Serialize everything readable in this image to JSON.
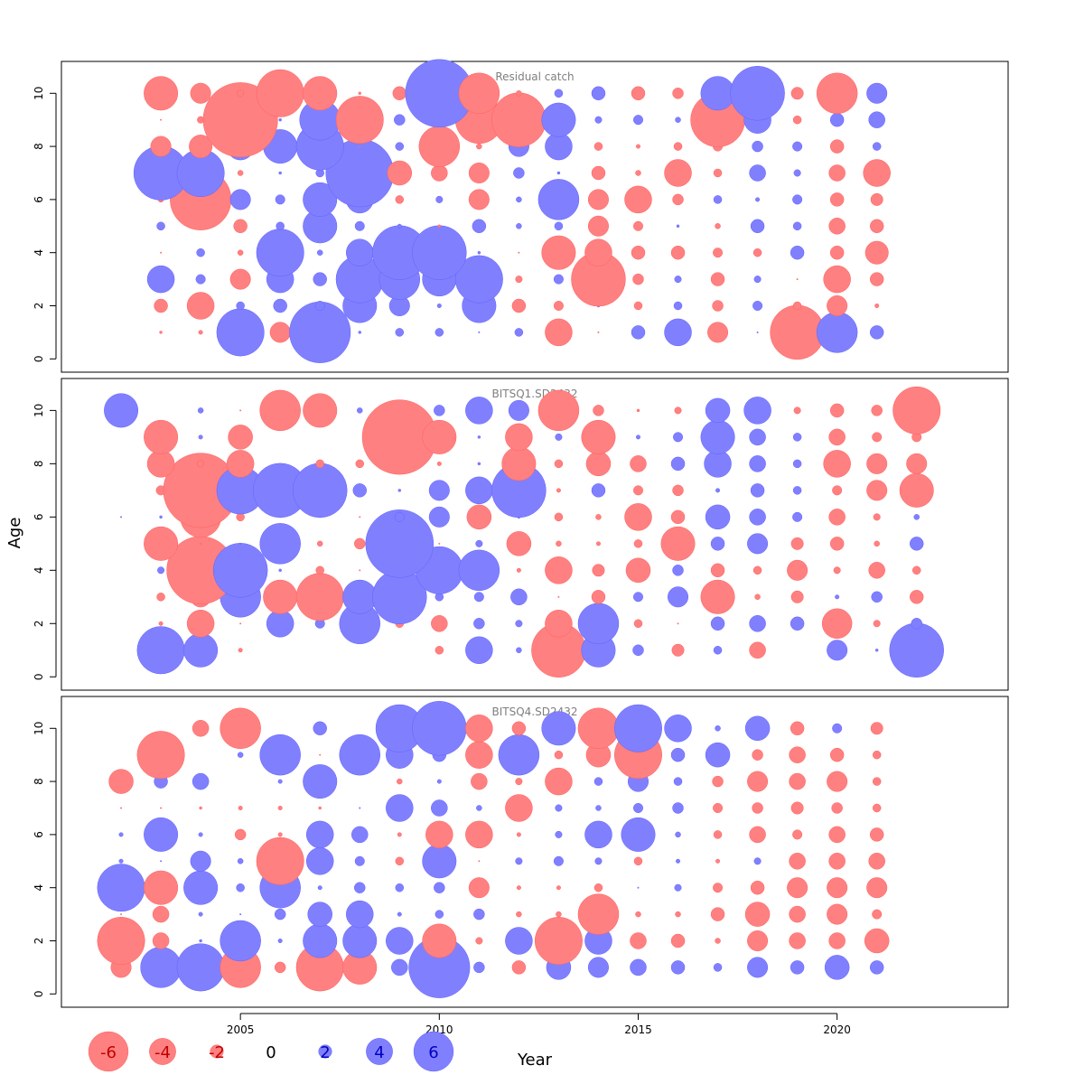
{
  "chart_data": {
    "type": "scatter",
    "subtype": "bubble",
    "xlabel": "Year",
    "ylabel": "Age",
    "xlim": [
      2000.5,
      2024.3
    ],
    "ylim": [
      -0.5,
      11.2
    ],
    "x_ticks": [
      2005,
      2010,
      2015,
      2020
    ],
    "y_ticks": [
      0,
      2,
      4,
      6,
      8,
      10
    ],
    "ages": [
      1,
      2,
      3,
      4,
      5,
      6,
      7,
      8,
      9,
      10
    ],
    "grid": false,
    "sign_colors": {
      "negative": "#ff8080",
      "positive": "#8080ff",
      "negative_text": "#c00000",
      "positive_text": "#0000c0"
    },
    "legend": {
      "placement": "bottom-left",
      "values": [
        -6,
        -4,
        -2,
        0,
        2,
        4,
        6
      ],
      "labels": [
        "-6",
        "-4",
        "-2",
        "0",
        "2",
        "4",
        "6"
      ]
    },
    "panels": [
      {
        "title": "Residual catch",
        "x": [
          2003,
          2004,
          2005,
          2006,
          2007,
          2008,
          2009,
          2010,
          2011,
          2012,
          2013,
          2014,
          2015,
          2016,
          2017,
          2018,
          2019,
          2020,
          2021
        ],
        "residuals": [
          [
            -0.2,
            -0.3,
            3.5,
            -1.5,
            4.5,
            0.2,
            0.6,
            0.6,
            0.1,
            0.6,
            -2.0,
            -0.1,
            1.0,
            2.0,
            -1.5,
            0.1,
            -4.0,
            3.0,
            1.0
          ],
          [
            -1.0,
            -2.0,
            0.6,
            1.0,
            0.7,
            2.5,
            1.5,
            0.3,
            2.5,
            -1.0,
            -0.7,
            0.2,
            -0.6,
            0.6,
            -0.8,
            0.7,
            -0.6,
            -1.5,
            -0.3
          ],
          [
            2.0,
            0.7,
            -1.5,
            2.0,
            1.0,
            3.5,
            3.0,
            2.5,
            3.5,
            -0.5,
            0.7,
            -4.0,
            -0.8,
            0.5,
            -1.0,
            0.5,
            -0.1,
            -2.0,
            -1.0
          ],
          [
            -0.1,
            0.6,
            -0.4,
            3.5,
            0.4,
            2.0,
            4.0,
            4.0,
            0.2,
            -0.1,
            -2.5,
            -2.0,
            -1.0,
            -1.0,
            -0.7,
            -0.6,
            1.0,
            -1.0,
            -1.7
          ],
          [
            0.6,
            -0.5,
            -1.0,
            0.6,
            2.5,
            0.7,
            0.3,
            -0.2,
            1.0,
            0.4,
            0.6,
            -1.5,
            -0.7,
            0.2,
            -0.4,
            1.0,
            0.6,
            -1.2,
            -1.0
          ],
          [
            -0.4,
            -4.5,
            1.5,
            0.7,
            2.5,
            2.0,
            -0.6,
            0.5,
            -1.5,
            0.4,
            3.0,
            -1.5,
            -2.0,
            -0.8,
            0.6,
            0.3,
            0.7,
            -1.0,
            -0.9
          ],
          [
            4.0,
            3.5,
            -0.4,
            0.2,
            0.6,
            5.0,
            -1.8,
            -1.2,
            -1.5,
            0.8,
            0.2,
            -1.0,
            -0.4,
            -2.0,
            -0.6,
            1.2,
            0.5,
            -1.2,
            -2.0
          ],
          [
            -1.5,
            -1.7,
            2.0,
            2.5,
            3.5,
            -0.1,
            0.6,
            -3.0,
            -0.4,
            1.5,
            2.0,
            -0.6,
            -0.3,
            -0.6,
            -0.7,
            0.8,
            0.7,
            -1.0,
            0.6
          ],
          [
            -0.1,
            -0.5,
            -5.5,
            0.2,
            3.0,
            -3.5,
            0.8,
            0.6,
            -3.5,
            -4.0,
            2.5,
            0.5,
            0.7,
            0.4,
            -4.0,
            2.0,
            -0.6,
            1.0,
            1.2
          ],
          [
            -2.5,
            -1.5,
            -0.5,
            -3.5,
            -2.5,
            -0.2,
            -1.0,
            5.0,
            -3.0,
            -0.4,
            0.6,
            1.0,
            -1.0,
            -0.8,
            2.5,
            4.0,
            -0.9,
            -3.0,
            1.5
          ]
        ]
      },
      {
        "title": "BITSQ1.SD2432",
        "x": [
          2002,
          2003,
          2004,
          2005,
          2006,
          2007,
          2008,
          2009,
          2010,
          2011,
          2012,
          2013,
          2014,
          2015,
          2016,
          2017,
          2018,
          2019,
          2020,
          2021,
          2022
        ],
        "residuals": [
          [
            null,
            3.5,
            2.5,
            -0.3,
            null,
            null,
            null,
            null,
            -0.6,
            2.0,
            0.4,
            -4.0,
            2.5,
            0.8,
            -0.9,
            0.6,
            -1.2,
            null,
            1.5,
            0.2,
            4.0
          ],
          [
            null,
            -0.3,
            -2.0,
            -0.1,
            2.0,
            0.7,
            3.0,
            -0.6,
            -1.2,
            0.8,
            0.5,
            -2.0,
            3.0,
            -0.6,
            -0.1,
            1.0,
            1.2,
            1.0,
            -2.2,
            -0.5,
            0.8
          ],
          [
            null,
            -0.6,
            -1.5,
            3.0,
            -2.5,
            -3.5,
            2.5,
            4.0,
            0.6,
            0.7,
            1.2,
            -0.1,
            -1.0,
            0.7,
            1.5,
            -2.5,
            -0.4,
            -0.9,
            0.3,
            0.8,
            -1.0
          ],
          [
            null,
            0.5,
            -5.0,
            4.0,
            0.2,
            -0.6,
            -0.1,
            0.4,
            3.5,
            3.0,
            -0.3,
            -2.0,
            -0.9,
            -1.8,
            0.8,
            -1.0,
            -0.6,
            -1.5,
            -0.5,
            -1.2,
            -0.6
          ],
          [
            null,
            -2.5,
            -0.1,
            0.1,
            3.0,
            -0.4,
            -0.8,
            5.0,
            -0.1,
            0.5,
            -1.8,
            -0.4,
            -0.3,
            -0.6,
            -2.5,
            1.0,
            1.5,
            -0.9,
            -1.0,
            -0.4,
            1.0
          ],
          [
            0.1,
            0.2,
            -3.0,
            -0.6,
            -0.1,
            -0.1,
            -0.1,
            0.7,
            1.5,
            -1.8,
            0.2,
            -0.6,
            -0.4,
            -2.0,
            -1.0,
            1.8,
            1.2,
            0.7,
            -1.2,
            -0.5,
            0.4
          ],
          [
            null,
            -0.7,
            -5.5,
            3.5,
            4.0,
            4.0,
            1.0,
            0.2,
            1.5,
            2.0,
            4.0,
            -0.3,
            1.0,
            -0.7,
            -0.8,
            0.3,
            1.0,
            0.6,
            -0.7,
            -1.5,
            -2.5
          ],
          [
            null,
            -2.0,
            -0.5,
            -2.0,
            null,
            -0.6,
            -0.6,
            1.0,
            -0.3,
            0.2,
            -2.5,
            -0.6,
            -1.8,
            -1.2,
            1.0,
            2.0,
            1.2,
            0.6,
            -2.0,
            -1.5,
            -1.5
          ],
          [
            null,
            -2.5,
            0.3,
            -1.8,
            null,
            null,
            null,
            -5.5,
            -2.5,
            0.2,
            -2.0,
            0.5,
            -2.5,
            0.3,
            0.7,
            2.5,
            1.2,
            0.6,
            -1.2,
            -0.7,
            -0.7
          ],
          [
            2.5,
            null,
            0.4,
            -0.1,
            -3.0,
            -2.5,
            0.4,
            null,
            0.8,
            2.0,
            1.5,
            -3.0,
            -0.8,
            -0.2,
            -0.5,
            1.8,
            2.0,
            -0.5,
            -1.0,
            -0.8,
            -3.5
          ]
        ]
      },
      {
        "title": "BITSQ4.SD2432",
        "x": [
          2002,
          2003,
          2004,
          2005,
          2006,
          2007,
          2008,
          2009,
          2010,
          2011,
          2012,
          2013,
          2014,
          2015,
          2016,
          2017,
          2018,
          2019,
          2020,
          2021
        ],
        "residuals": [
          [
            -1.5,
            3.0,
            3.5,
            -3.0,
            -0.8,
            -3.5,
            -2.5,
            1.2,
            4.5,
            0.8,
            -1.0,
            1.8,
            1.5,
            1.2,
            1.0,
            0.6,
            1.5,
            1.0,
            1.8,
            1.0
          ],
          [
            -3.5,
            -1.2,
            0.2,
            3.0,
            0.3,
            2.5,
            2.5,
            2.0,
            -2.5,
            -0.5,
            2.0,
            -3.5,
            2.0,
            -1.2,
            -1.0,
            -0.4,
            -1.5,
            -1.2,
            -1.2,
            -1.8
          ],
          [
            -0.1,
            -1.2,
            0.3,
            0.1,
            0.8,
            1.8,
            2.0,
            0.3,
            0.6,
            0.8,
            -0.4,
            -0.4,
            -3.0,
            -0.4,
            -0.4,
            -1.0,
            -1.8,
            -1.2,
            -1.5,
            -0.7
          ],
          [
            3.5,
            -2.5,
            2.5,
            0.6,
            3.0,
            0.3,
            0.8,
            0.6,
            0.8,
            -1.5,
            -0.3,
            -0.3,
            -0.6,
            0.1,
            0.5,
            -0.7,
            -1.0,
            -1.5,
            -1.5,
            -1.5
          ],
          [
            0.3,
            0.1,
            1.5,
            0.4,
            -3.5,
            2.0,
            0.7,
            -0.6,
            2.5,
            -0.1,
            0.5,
            0.7,
            0.5,
            -0.6,
            0.3,
            -0.3,
            0.5,
            -1.2,
            -1.2,
            -1.2
          ],
          [
            0.3,
            2.5,
            0.3,
            -0.8,
            -0.3,
            2.0,
            1.2,
            -0.3,
            -2.0,
            -2.0,
            -0.3,
            0.5,
            2.0,
            2.5,
            0.4,
            -0.6,
            -1.2,
            -0.7,
            -1.2,
            -1.0
          ],
          [
            -0.1,
            -0.1,
            -0.2,
            -0.3,
            -0.3,
            -0.2,
            0.1,
            2.0,
            1.2,
            0.4,
            -2.0,
            0.5,
            0.4,
            0.7,
            0.8,
            -0.7,
            -0.8,
            -0.9,
            -0.8,
            -0.6
          ],
          [
            -1.8,
            1.0,
            1.2,
            null,
            0.3,
            2.5,
            null,
            -0.4,
            0.3,
            -1.2,
            -0.5,
            -2.0,
            0.6,
            1.5,
            0.6,
            -0.8,
            -1.5,
            -1.2,
            -1.5,
            -0.6
          ],
          [
            null,
            -3.5,
            null,
            0.4,
            3.0,
            -0.1,
            3.0,
            2.0,
            1.0,
            -2.0,
            3.0,
            -0.6,
            -1.8,
            -3.5,
            1.0,
            1.8,
            -0.8,
            -1.2,
            -1.0,
            -0.6
          ],
          [
            null,
            null,
            -1.2,
            -3.0,
            null,
            1.0,
            null,
            3.5,
            4.0,
            -2.0,
            -1.0,
            2.5,
            -3.0,
            3.5,
            2.0,
            0.4,
            1.8,
            -1.0,
            0.7,
            -0.9
          ]
        ]
      }
    ]
  }
}
